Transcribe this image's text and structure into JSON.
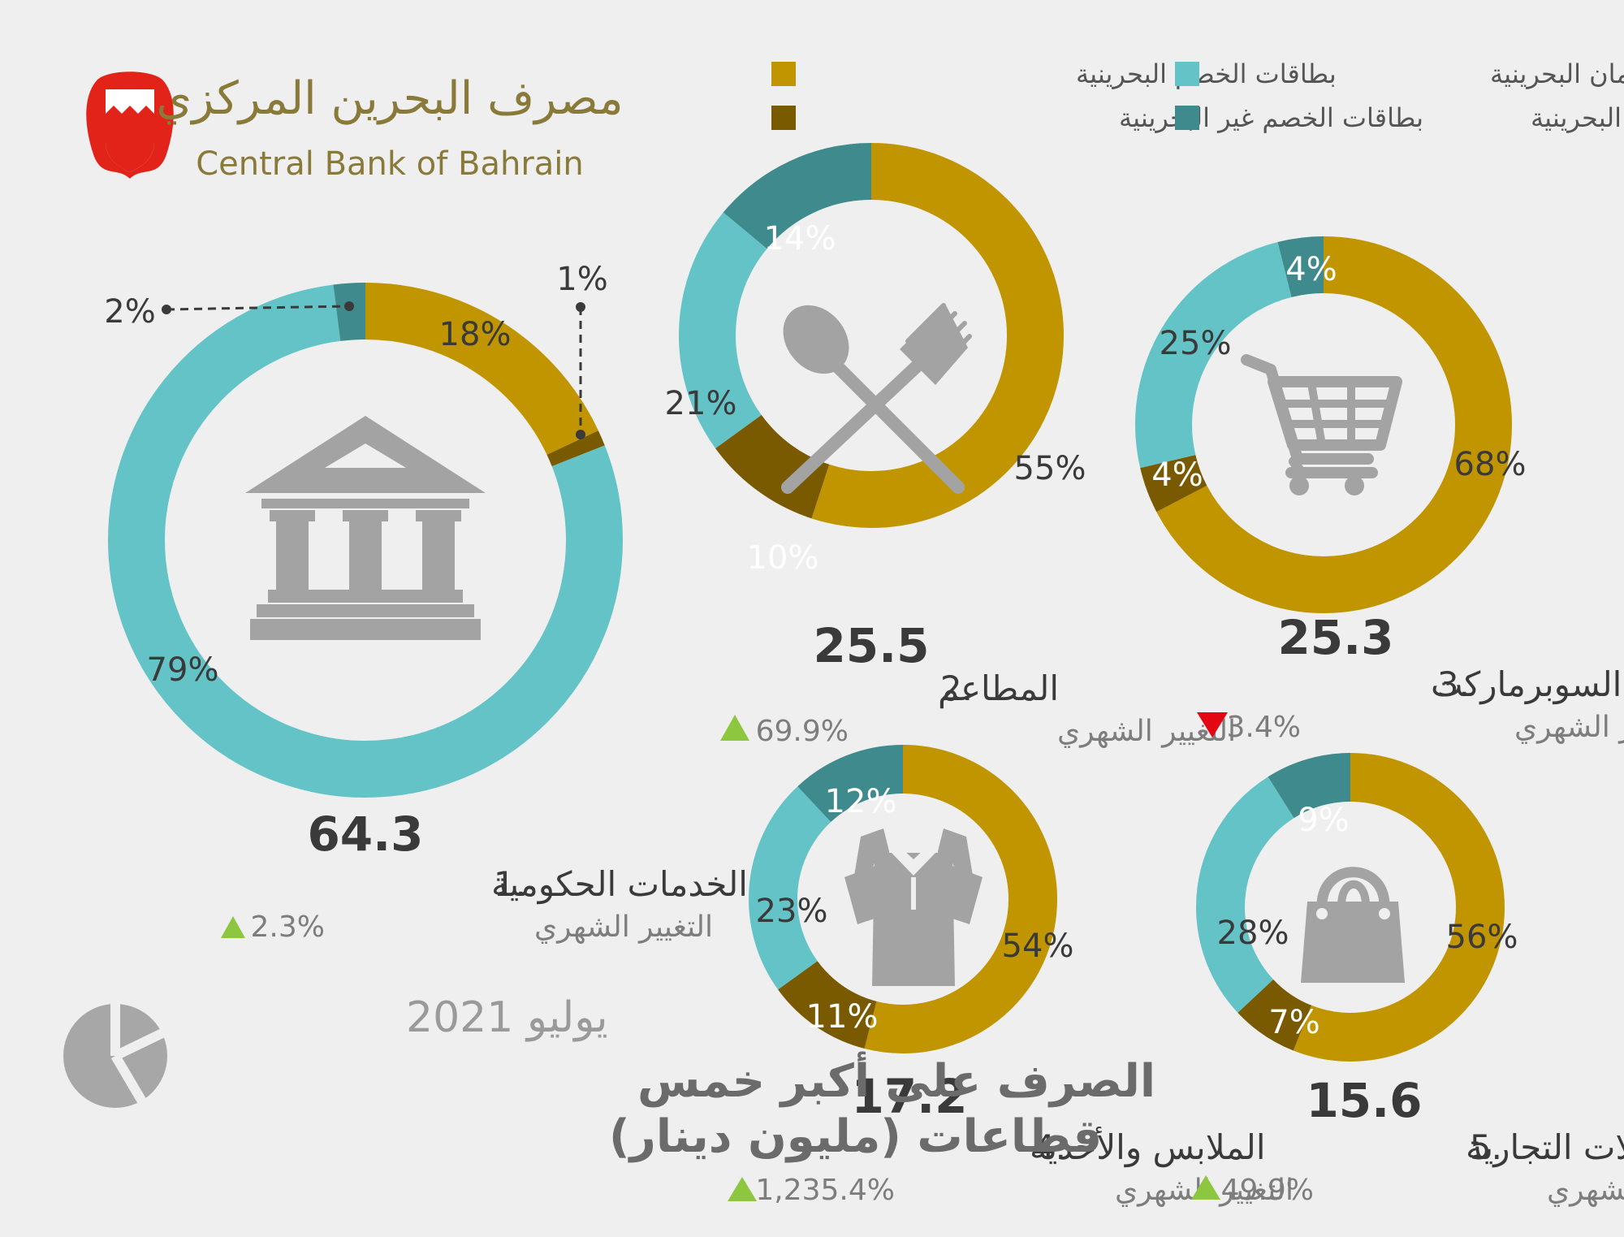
{
  "bank": {
    "name_ar": "مصرف البحرين المركزي",
    "name_en": "Central Bank of Bahrain"
  },
  "legend": [
    {
      "label": "بطاقات الخصم البحرينية",
      "color": "#c19500"
    },
    {
      "label": "بطاقات الائتمان البحرينية",
      "color": "#63c3c6"
    },
    {
      "label": "بطاقات الخصم غير البحرينية",
      "color": "#7a5a00"
    },
    {
      "label": "بطاقات الائتمان غير البحرينية",
      "color": "#3f8a8d"
    }
  ],
  "colors": {
    "debit_bh": "#c19500",
    "debit_non_bh": "#7a5a00",
    "credit_bh": "#63c3c6",
    "credit_non_bh": "#3f8a8d",
    "up": "#8dc63f",
    "down": "#e30613"
  },
  "title": {
    "date": "يوليو 2021",
    "line1": "الصرف على أكبر خمس",
    "line2": "قطاعات (مليون دينار)"
  },
  "change_label": "التغيير الشهري",
  "chart_data": [
    {
      "type": "pie",
      "rank": "1.",
      "sector": "الخدمات الحكومية",
      "value": "64.3",
      "change": "2.3%",
      "direction": "up",
      "icon": "bank-building-icon",
      "slices": [
        {
          "series": "debit_bh",
          "value": 18,
          "label": "18%"
        },
        {
          "series": "debit_non_bh",
          "value": 1,
          "label": "1%"
        },
        {
          "series": "credit_bh",
          "value": 79,
          "label": "79%"
        },
        {
          "series": "credit_non_bh",
          "value": 2,
          "label": "2%"
        }
      ]
    },
    {
      "type": "pie",
      "rank": "2.",
      "sector": "المطاعم",
      "value": "25.5",
      "change": "69.9%",
      "direction": "up",
      "icon": "fork-spoon-icon",
      "slices": [
        {
          "series": "debit_bh",
          "value": 55,
          "label": "55%"
        },
        {
          "series": "debit_non_bh",
          "value": 10,
          "label": "10%"
        },
        {
          "series": "credit_bh",
          "value": 21,
          "label": "21%"
        },
        {
          "series": "credit_non_bh",
          "value": 14,
          "label": "14%"
        }
      ]
    },
    {
      "type": "pie",
      "rank": "3.",
      "sector": "السوبرماركت",
      "value": "25.3",
      "change": "3.4%",
      "direction": "down",
      "icon": "shopping-cart-icon",
      "slices": [
        {
          "series": "debit_bh",
          "value": 68,
          "label": "68%"
        },
        {
          "series": "debit_non_bh",
          "value": 4,
          "label": "4%"
        },
        {
          "series": "credit_bh",
          "value": 25,
          "label": "25%"
        },
        {
          "series": "credit_non_bh",
          "value": 4,
          "label": "4%"
        }
      ]
    },
    {
      "type": "pie",
      "rank": "4.",
      "sector": "الملابس والأحذية",
      "value": "17.2",
      "change": "1,235.4%",
      "direction": "up",
      "icon": "shirt-icon",
      "slices": [
        {
          "series": "debit_bh",
          "value": 54,
          "label": "54%"
        },
        {
          "series": "debit_non_bh",
          "value": 11,
          "label": "11%"
        },
        {
          "series": "credit_bh",
          "value": 23,
          "label": "23%"
        },
        {
          "series": "credit_non_bh",
          "value": 12,
          "label": "12%"
        }
      ]
    },
    {
      "type": "pie",
      "rank": "5.",
      "sector": "المحلات التجارية",
      "value": "15.6",
      "change": "49.9%",
      "direction": "up",
      "icon": "shopping-bag-icon",
      "slices": [
        {
          "series": "debit_bh",
          "value": 56,
          "label": "56%"
        },
        {
          "series": "debit_non_bh",
          "value": 7,
          "label": "7%"
        },
        {
          "series": "credit_bh",
          "value": 28,
          "label": "28%"
        },
        {
          "series": "credit_non_bh",
          "value": 9,
          "label": "9%"
        }
      ]
    }
  ]
}
